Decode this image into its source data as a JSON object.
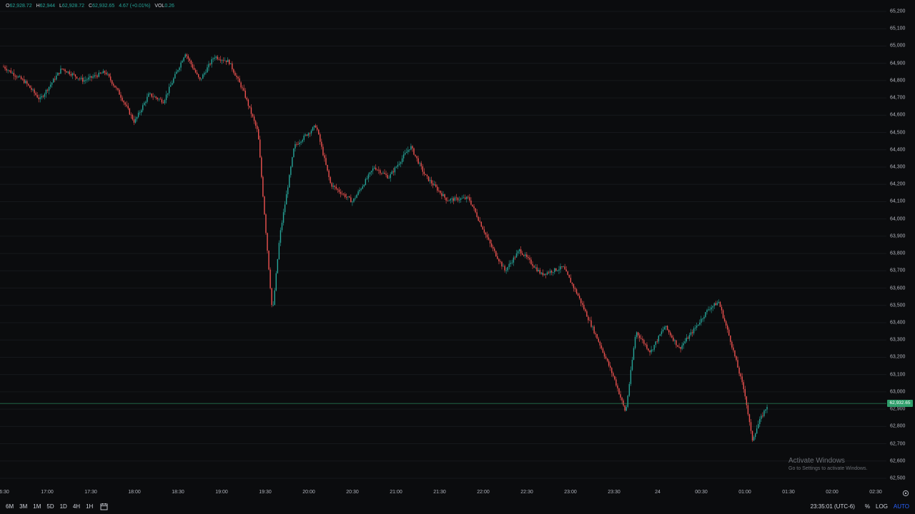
{
  "legend": {
    "o_label": "O",
    "o_value": "62,928.72",
    "h_label": "H",
    "h_value": "62,944",
    "l_label": "L",
    "l_value": "62,928.72",
    "c_label": "C",
    "c_value": "62,932.65",
    "change": "4.67 (+0.01%)",
    "vol_label": "VOL",
    "vol_value": "0.26"
  },
  "colors": {
    "up": "#26a69a",
    "down": "#ef5350",
    "background": "#0b0c0e",
    "grid": "#16181c",
    "last_price": "#2e9e6b",
    "accent": "#2962ff"
  },
  "price_axis": {
    "ticks": [
      "65,200",
      "65,100",
      "65,000",
      "64,900",
      "64,800",
      "64,700",
      "64,600",
      "64,500",
      "64,400",
      "64,300",
      "64,200",
      "64,100",
      "64,000",
      "63,900",
      "63,800",
      "63,700",
      "63,600",
      "63,500",
      "63,400",
      "63,300",
      "63,200",
      "63,100",
      "63,000",
      "62,900",
      "62,800",
      "62,700",
      "62,600",
      "62,500"
    ],
    "last_price": "62,932.65"
  },
  "time_axis": {
    "ticks": [
      "6:30",
      "17:00",
      "17:30",
      "18:00",
      "18:30",
      "19:00",
      "19:30",
      "20:00",
      "20:30",
      "21:00",
      "21:30",
      "22:00",
      "22:30",
      "23:00",
      "23:30",
      "24",
      "00:30",
      "01:00",
      "01:30",
      "02:00",
      "02:30"
    ]
  },
  "chart_data": {
    "type": "candlestick",
    "ylim": [
      62500,
      65200
    ],
    "x_start": "16:30",
    "x_end": "02:40",
    "last_price": 62932.65,
    "price_path": [
      [
        "16:30",
        64880
      ],
      [
        "16:45",
        64790
      ],
      [
        "16:55",
        64690
      ],
      [
        "17:10",
        64870
      ],
      [
        "17:25",
        64800
      ],
      [
        "17:40",
        64850
      ],
      [
        "17:50",
        64720
      ],
      [
        "18:00",
        64560
      ],
      [
        "18:10",
        64720
      ],
      [
        "18:20",
        64680
      ],
      [
        "18:35",
        64960
      ],
      [
        "18:45",
        64800
      ],
      [
        "18:55",
        64940
      ],
      [
        "19:05",
        64910
      ],
      [
        "19:15",
        64740
      ],
      [
        "19:25",
        64500
      ],
      [
        "19:35",
        63450
      ],
      [
        "19:40",
        63900
      ],
      [
        "19:50",
        64420
      ],
      [
        "20:05",
        64540
      ],
      [
        "20:15",
        64200
      ],
      [
        "20:30",
        64100
      ],
      [
        "20:45",
        64300
      ],
      [
        "20:55",
        64240
      ],
      [
        "21:10",
        64420
      ],
      [
        "21:20",
        64250
      ],
      [
        "21:35",
        64110
      ],
      [
        "21:50",
        64120
      ],
      [
        "22:05",
        63850
      ],
      [
        "22:15",
        63700
      ],
      [
        "22:25",
        63820
      ],
      [
        "22:40",
        63680
      ],
      [
        "22:55",
        63720
      ],
      [
        "23:05",
        63560
      ],
      [
        "23:20",
        63280
      ],
      [
        "23:30",
        63080
      ],
      [
        "23:38",
        62880
      ],
      [
        "23:45",
        63350
      ],
      [
        "23:55",
        63230
      ],
      [
        "00:05",
        63380
      ],
      [
        "00:15",
        63250
      ],
      [
        "00:25",
        63360
      ],
      [
        "00:35",
        63480
      ],
      [
        "00:42",
        63520
      ],
      [
        "00:50",
        63300
      ],
      [
        "01:00",
        62990
      ],
      [
        "01:05",
        62720
      ],
      [
        "01:10",
        62830
      ],
      [
        "01:16",
        62932
      ]
    ]
  },
  "toolbar": {
    "timeframes": [
      "6M",
      "3M",
      "1M",
      "5D",
      "1D",
      "4H",
      "1H"
    ],
    "clock": "23:35:01 (UTC-6)",
    "percent_label": "%",
    "log_label": "LOG",
    "auto_label": "AUTO"
  },
  "watermark": {
    "title": "Activate Windows",
    "subtitle": "Go to Settings to activate Windows."
  }
}
